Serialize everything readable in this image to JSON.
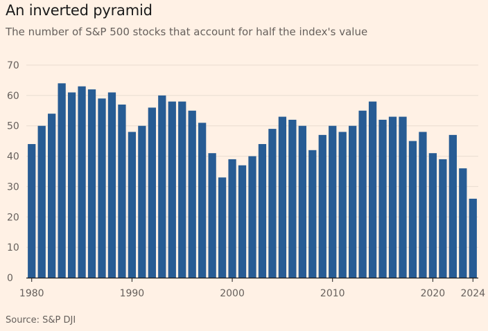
{
  "header": {
    "title": "An inverted pyramid",
    "subtitle": "The number of S&P 500 stocks that account for half the index's value"
  },
  "footer": {
    "source": "Source: S&P DJI"
  },
  "colors": {
    "background": "#fff1e5",
    "bar": "#275c94",
    "grid": "#e8dcd0",
    "text": "#66605c"
  },
  "chart_data": {
    "type": "bar",
    "title": "An inverted pyramid",
    "subtitle": "The number of S&P 500 stocks that account for half the index's value",
    "xlabel": "",
    "ylabel": "",
    "categories": [
      1980,
      1981,
      1982,
      1983,
      1984,
      1985,
      1986,
      1987,
      1988,
      1989,
      1990,
      1991,
      1992,
      1993,
      1994,
      1995,
      1996,
      1997,
      1998,
      1999,
      2000,
      2001,
      2002,
      2003,
      2004,
      2005,
      2006,
      2007,
      2008,
      2009,
      2010,
      2011,
      2012,
      2013,
      2014,
      2015,
      2016,
      2017,
      2018,
      2019,
      2020,
      2021,
      2022,
      2023,
      2024
    ],
    "values": [
      44,
      50,
      54,
      64,
      61,
      63,
      62,
      59,
      61,
      57,
      48,
      50,
      56,
      60,
      58,
      58,
      55,
      51,
      41,
      33,
      39,
      37,
      40,
      44,
      49,
      53,
      52,
      50,
      42,
      47,
      50,
      48,
      50,
      55,
      58,
      52,
      53,
      53,
      45,
      48,
      41,
      39,
      47,
      36,
      26
    ],
    "xticks": [
      "1980",
      "1990",
      "2000",
      "2010",
      "2020",
      "2024"
    ],
    "yticks": [
      "0",
      "10",
      "20",
      "30",
      "40",
      "50",
      "60",
      "70"
    ],
    "ylim": [
      0,
      70
    ],
    "grid": true
  }
}
